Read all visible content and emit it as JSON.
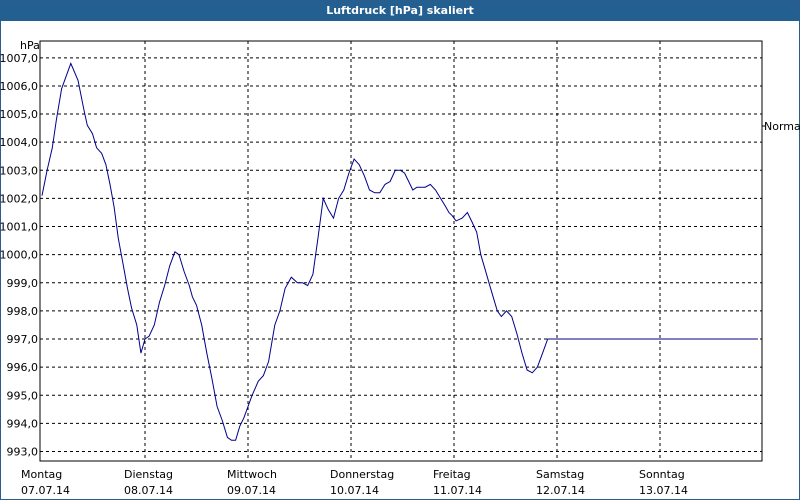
{
  "chart_data": {
    "type": "line",
    "title": "Luftdruck [hPa] skaliert",
    "ylabel": "hPa",
    "ylim": [
      992.8,
      1007.5
    ],
    "xlim": [
      0,
      7
    ],
    "grid": true,
    "y_ticks": [
      "993,0",
      "994,0",
      "995,0",
      "996,0",
      "997,0",
      "998,0",
      "999,0",
      "1000,0",
      "1001,0",
      "1002,0",
      "1003,0",
      "1004,0",
      "1005,0",
      "1006,0",
      "1007,0"
    ],
    "x_ticks": [
      {
        "day": "Montag",
        "date": "07.07.14"
      },
      {
        "day": "Dienstag",
        "date": "08.07.14"
      },
      {
        "day": "Mittwoch",
        "date": "09.07.14"
      },
      {
        "day": "Donnerstag",
        "date": "10.07.14"
      },
      {
        "day": "Freitag",
        "date": "11.07.14"
      },
      {
        "day": "Samstag",
        "date": "12.07.14"
      },
      {
        "day": "Sonntag",
        "date": "13.07.14"
      }
    ],
    "reference_label": "Normal",
    "line_color": "#00008b",
    "series": [
      {
        "x": [
          0.0,
          0.05,
          0.1,
          0.14,
          0.19,
          0.24,
          0.28,
          0.35,
          0.41,
          0.44,
          0.49,
          0.53,
          0.58,
          0.62,
          0.66,
          0.7,
          0.74,
          0.79,
          0.83,
          0.87,
          0.92,
          0.96,
          1.0,
          1.04,
          1.09,
          1.14,
          1.19,
          1.24,
          1.29,
          1.33,
          1.38,
          1.43,
          1.46,
          1.5,
          1.55,
          1.6,
          1.65,
          1.7,
          1.75,
          1.8,
          1.84,
          1.88,
          1.92,
          1.96,
          2.0,
          2.04,
          2.1,
          2.15,
          2.2,
          2.26,
          2.31,
          2.36,
          2.42,
          2.48,
          2.53,
          2.58,
          2.63,
          2.68,
          2.73,
          2.78,
          2.83,
          2.88,
          2.93,
          2.98,
          3.03,
          3.08,
          3.13,
          3.18,
          3.23,
          3.28,
          3.33,
          3.38,
          3.43,
          3.48,
          3.52,
          3.56,
          3.6,
          3.64,
          3.68,
          3.72,
          3.77,
          3.82,
          3.87,
          3.92,
          3.95,
          3.98,
          4.02,
          4.08,
          4.13,
          4.17,
          4.22,
          4.26,
          4.3,
          4.34,
          4.38,
          4.42,
          4.46,
          4.51,
          4.56,
          4.61,
          4.66,
          4.71,
          4.76,
          4.81,
          4.86,
          4.91,
          4.96,
          5.01,
          5.06,
          5.11,
          5.16,
          5.21,
          5.26,
          5.31,
          5.36,
          5.41,
          5.46,
          5.51,
          5.56,
          5.61,
          5.66,
          5.71,
          5.76,
          5.81,
          5.86,
          5.91,
          5.96,
          6.01,
          6.06,
          6.11,
          6.16,
          6.21,
          6.26,
          6.31,
          6.36,
          6.41,
          6.46,
          6.52,
          6.57,
          6.62,
          6.67,
          6.72,
          6.77,
          6.82,
          6.87,
          6.92,
          6.95
        ],
        "values": [
          1002.1,
          1003.0,
          1003.8,
          1004.8,
          1005.9,
          1006.4,
          1006.8,
          1006.2,
          1005.1,
          1004.6,
          1004.3,
          1003.8,
          1003.6,
          1003.2,
          1002.5,
          1001.7,
          1000.6,
          999.6,
          998.8,
          998.1,
          997.5,
          996.5,
          997.0,
          997.1,
          997.5,
          998.3,
          998.9,
          999.6,
          1000.1,
          1000.0,
          999.4,
          998.9,
          998.5,
          998.2,
          997.5,
          996.5,
          995.6,
          994.6,
          994.1,
          993.5,
          993.4,
          993.4,
          993.9,
          994.2,
          994.6,
          995.0,
          995.5,
          995.7,
          996.2,
          997.5,
          998.0,
          998.8,
          999.2,
          999.0,
          999.0,
          998.9,
          999.3,
          1000.6,
          1002.0,
          1001.6,
          1001.3,
          1002.0,
          1002.3,
          1002.9,
          1003.4,
          1003.2,
          1002.8,
          1002.3,
          1002.2,
          1002.2,
          1002.5,
          1002.6,
          1003.0,
          1003.0,
          1002.9,
          1002.6,
          1002.3,
          1002.4,
          1002.4,
          1002.4,
          1002.5,
          1002.3,
          1002.0,
          1001.7,
          1001.5,
          1001.4,
          1001.2,
          1001.3,
          1001.5,
          1001.2,
          1000.8,
          1000.0,
          999.5,
          999.0,
          998.5,
          998.0,
          997.8,
          998.0,
          997.8,
          997.2,
          996.5,
          995.9,
          995.8,
          996.0,
          996.5,
          997.0,
          997.0,
          997.0,
          997.0,
          997.0,
          997.0,
          997.0,
          997.0,
          997.0,
          997.0,
          997.0,
          997.0,
          997.0,
          997.0,
          997.0,
          997.0,
          997.0,
          997.0,
          997.0,
          997.0,
          997.0,
          997.0,
          997.0,
          997.0,
          997.0,
          997.0,
          997.0,
          997.0,
          997.0,
          997.0,
          997.0,
          997.0,
          997.0,
          997.0,
          997.0,
          997.0,
          997.0,
          997.0,
          997.0,
          997.0,
          997.0,
          997.0
        ]
      }
    ]
  }
}
